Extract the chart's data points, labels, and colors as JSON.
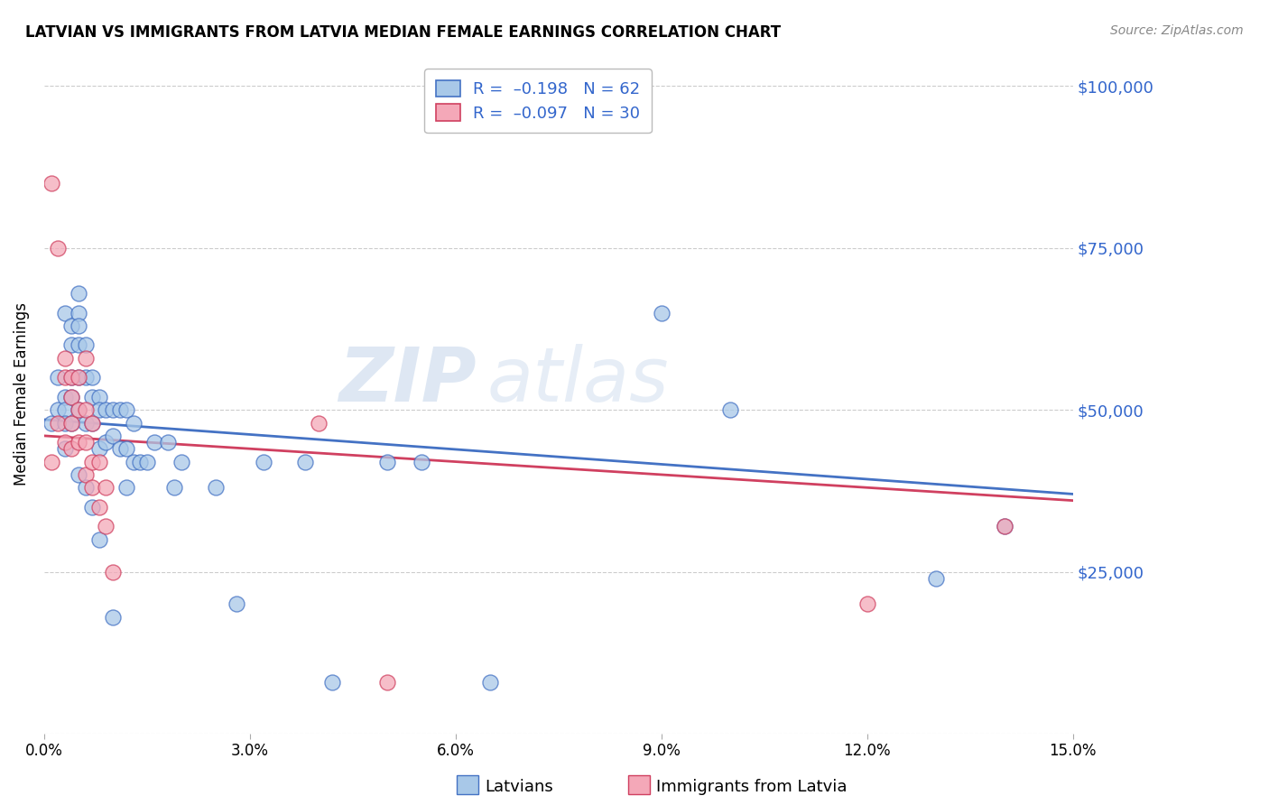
{
  "title": "LATVIAN VS IMMIGRANTS FROM LATVIA MEDIAN FEMALE EARNINGS CORRELATION CHART",
  "source": "Source: ZipAtlas.com",
  "ylabel": "Median Female Earnings",
  "yticks": [
    0,
    25000,
    50000,
    75000,
    100000
  ],
  "ytick_labels": [
    "",
    "$25,000",
    "$50,000",
    "$75,000",
    "$100,000"
  ],
  "xticks": [
    0.0,
    0.03,
    0.06,
    0.09,
    0.12,
    0.15
  ],
  "xtick_labels": [
    "0.0%",
    "3.0%",
    "6.0%",
    "9.0%",
    "12.0%",
    "15.0%"
  ],
  "xmin": 0.0,
  "xmax": 0.15,
  "ymin": 0,
  "ymax": 105000,
  "latvians_color": "#A8C8E8",
  "immigrants_color": "#F4A8B8",
  "trendline_latvians_color": "#4472C4",
  "trendline_immigrants_color": "#D04060",
  "watermark_zip": "ZIP",
  "watermark_atlas": "atlas",
  "latvians_x": [
    0.001,
    0.002,
    0.002,
    0.003,
    0.003,
    0.003,
    0.003,
    0.003,
    0.004,
    0.004,
    0.004,
    0.004,
    0.004,
    0.005,
    0.005,
    0.005,
    0.005,
    0.005,
    0.005,
    0.006,
    0.006,
    0.006,
    0.007,
    0.007,
    0.007,
    0.008,
    0.008,
    0.008,
    0.009,
    0.009,
    0.01,
    0.01,
    0.011,
    0.011,
    0.012,
    0.012,
    0.013,
    0.013,
    0.014,
    0.015,
    0.016,
    0.018,
    0.019,
    0.02,
    0.025,
    0.028,
    0.032,
    0.038,
    0.042,
    0.05,
    0.055,
    0.065,
    0.09,
    0.1,
    0.13,
    0.14,
    0.005,
    0.006,
    0.007,
    0.008,
    0.01,
    0.012
  ],
  "latvians_y": [
    48000,
    55000,
    50000,
    65000,
    52000,
    50000,
    48000,
    44000,
    63000,
    60000,
    55000,
    52000,
    48000,
    68000,
    65000,
    63000,
    60000,
    55000,
    50000,
    60000,
    55000,
    48000,
    55000,
    52000,
    48000,
    52000,
    50000,
    44000,
    50000,
    45000,
    50000,
    46000,
    50000,
    44000,
    50000,
    44000,
    48000,
    42000,
    42000,
    42000,
    45000,
    45000,
    38000,
    42000,
    38000,
    20000,
    42000,
    42000,
    8000,
    42000,
    42000,
    8000,
    65000,
    50000,
    24000,
    32000,
    40000,
    38000,
    35000,
    30000,
    18000,
    38000
  ],
  "immigrants_x": [
    0.001,
    0.001,
    0.002,
    0.002,
    0.003,
    0.003,
    0.003,
    0.004,
    0.004,
    0.004,
    0.004,
    0.005,
    0.005,
    0.005,
    0.006,
    0.006,
    0.006,
    0.006,
    0.007,
    0.007,
    0.007,
    0.008,
    0.008,
    0.009,
    0.009,
    0.01,
    0.04,
    0.05,
    0.12,
    0.14
  ],
  "immigrants_y": [
    85000,
    42000,
    75000,
    48000,
    58000,
    55000,
    45000,
    55000,
    52000,
    48000,
    44000,
    55000,
    50000,
    45000,
    58000,
    50000,
    45000,
    40000,
    48000,
    42000,
    38000,
    42000,
    35000,
    38000,
    32000,
    25000,
    48000,
    8000,
    20000,
    32000
  ],
  "trendline_lat_x0": 0.0,
  "trendline_lat_y0": 48500,
  "trendline_lat_x1": 0.15,
  "trendline_lat_y1": 37000,
  "trendline_imm_x0": 0.0,
  "trendline_imm_y0": 46000,
  "trendline_imm_x1": 0.15,
  "trendline_imm_y1": 36000
}
